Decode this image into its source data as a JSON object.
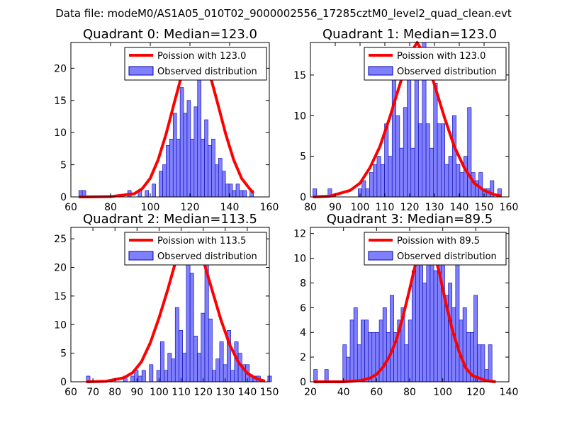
{
  "suptitle": "Data file: modeM0/AS1A05_010T02_9000002556_17285cztM0_level2_quad_clean.evt",
  "colors": {
    "line": "#ff0000",
    "bar_fill": "#8080ff",
    "bar_edge": "#0000aa",
    "axis": "#000000",
    "legend_edge": "#000000"
  },
  "chart_data": [
    {
      "type": "bar",
      "title": "Quadrant 0: Median=123.0",
      "median": 123.0,
      "xlim": [
        60,
        160
      ],
      "ylim": [
        0,
        24
      ],
      "xticks": [
        60,
        80,
        100,
        120,
        140,
        160
      ],
      "yticks": [
        0,
        5,
        10,
        15,
        20
      ],
      "legend": {
        "location": "upper-right",
        "line_label": "Poission with 123.0",
        "bar_label": "Observed distribution"
      },
      "bins": {
        "start": 64,
        "width": 1.76
      },
      "counts": [
        1,
        1,
        0,
        0,
        0,
        0,
        0,
        0,
        0,
        0,
        0,
        0,
        0,
        0,
        1,
        0,
        0,
        1,
        0,
        1,
        0,
        2,
        0,
        4,
        5,
        8,
        9,
        13,
        9,
        17,
        13,
        15,
        9,
        14,
        22,
        9,
        12,
        8,
        9,
        5,
        6,
        4,
        2,
        2,
        1,
        2,
        1,
        1,
        0,
        1
      ],
      "poisson_fit": {
        "x": [
          64,
          80,
          92,
          96,
          100,
          104,
          108,
          112,
          116,
          120,
          123,
          126,
          130,
          134,
          138,
          142,
          146,
          150,
          152
        ],
        "y": [
          0,
          0.05,
          0.5,
          1.3,
          2.9,
          5.8,
          9.8,
          14.5,
          19.1,
          22.3,
          23,
          22.3,
          19.1,
          14.5,
          9.8,
          5.8,
          2.9,
          1.3,
          0.6
        ]
      }
    },
    {
      "type": "bar",
      "title": "Quadrant 1: Median=123.0",
      "median": 123.0,
      "xlim": [
        80,
        160
      ],
      "ylim": [
        0,
        19
      ],
      "xticks": [
        80,
        90,
        100,
        110,
        120,
        130,
        140,
        150,
        160
      ],
      "yticks": [
        0,
        5,
        10,
        15
      ],
      "legend": {
        "location": "upper-right",
        "line_label": "Poission with 123.0",
        "bar_label": "Observed distribution"
      },
      "bins": {
        "start": 81,
        "width": 1.52
      },
      "counts": [
        1,
        0,
        0,
        0,
        1,
        0,
        0,
        0,
        0,
        0,
        0,
        0,
        1,
        2,
        1,
        3,
        4,
        5,
        4,
        9,
        5,
        15,
        10,
        6,
        11,
        16,
        6,
        15,
        9,
        19,
        9,
        6,
        14,
        9,
        9,
        4,
        5,
        10,
        4,
        3,
        5,
        11,
        3,
        2,
        3,
        1,
        1,
        2,
        0,
        1
      ],
      "poisson_fit": {
        "x": [
          81,
          88,
          96,
          100,
          104,
          108,
          112,
          116,
          120,
          123,
          126,
          130,
          134,
          138,
          142,
          146,
          150,
          154,
          157
        ],
        "y": [
          0,
          0.1,
          0.8,
          1.7,
          3.6,
          6.2,
          9.8,
          13.8,
          17.5,
          19,
          17.5,
          13.8,
          9.8,
          6.2,
          3.6,
          1.7,
          0.8,
          0.3,
          0.1
        ]
      }
    },
    {
      "type": "bar",
      "title": "Quadrant 2: Median=113.5",
      "median": 113.5,
      "xlim": [
        60,
        150
      ],
      "ylim": [
        0,
        27
      ],
      "xticks": [
        60,
        70,
        80,
        90,
        100,
        110,
        120,
        130,
        140,
        150
      ],
      "yticks": [
        0,
        5,
        10,
        15,
        20,
        25
      ],
      "legend": {
        "location": "upper-right",
        "line_label": "Poission with 113.5",
        "bar_label": "Observed distribution"
      },
      "bins": {
        "start": 67,
        "width": 1.68
      },
      "counts": [
        1,
        0,
        0,
        0,
        0,
        0,
        0,
        0,
        0,
        0,
        1,
        0,
        1,
        2,
        1,
        2,
        0,
        3,
        0,
        2,
        7,
        2,
        5,
        4,
        13,
        9,
        5,
        26,
        19,
        8,
        5,
        12,
        21,
        11,
        2,
        4,
        7,
        3,
        9,
        2,
        7,
        5,
        3,
        3,
        1,
        1,
        1,
        0,
        0,
        1
      ],
      "poisson_fit": {
        "x": [
          67,
          76,
          84,
          88,
          92,
          96,
          100,
          104,
          108,
          111,
          113.5,
          116,
          120,
          124,
          128,
          132,
          136,
          140,
          144,
          148
        ],
        "y": [
          0,
          0.1,
          0.7,
          1.6,
          3.5,
          6.8,
          11.2,
          16.2,
          21.7,
          25,
          26,
          25,
          21.3,
          16.1,
          10.9,
          6.5,
          3.4,
          1.5,
          0.6,
          0.1
        ]
      }
    },
    {
      "type": "bar",
      "title": "Quadrant 3: Median=89.5",
      "median": 89.5,
      "xlim": [
        20,
        140
      ],
      "ylim": [
        0,
        12.5
      ],
      "xticks": [
        20,
        40,
        60,
        80,
        100,
        120,
        140
      ],
      "yticks": [
        0,
        2,
        4,
        6,
        8,
        10,
        12
      ],
      "legend": {
        "location": "upper-right",
        "line_label": "Poission with 89.5",
        "bar_label": "Observed distribution"
      },
      "bins": {
        "start": 22,
        "width": 2.2
      },
      "counts": [
        1,
        0,
        0,
        1,
        0,
        0,
        0,
        0,
        3,
        2,
        5,
        6,
        3,
        5,
        5,
        4,
        4,
        4,
        5,
        6,
        4,
        7,
        4,
        5,
        6,
        3,
        5,
        9,
        11,
        10,
        8,
        10,
        10,
        9,
        11,
        12,
        7,
        8,
        6,
        10,
        5,
        6,
        4,
        4,
        7,
        3,
        3,
        1,
        3,
        0
      ],
      "poisson_fit": {
        "x": [
          22,
          40,
          50,
          56,
          60,
          64,
          68,
          72,
          76,
          80,
          84,
          89.5,
          94,
          98,
          102,
          106,
          110,
          114,
          118,
          126,
          132
        ],
        "y": [
          0,
          0,
          0.1,
          0.3,
          0.6,
          1.2,
          2.1,
          3.4,
          5.3,
          7.5,
          9.8,
          12,
          10.9,
          8.8,
          6.3,
          4.1,
          2.4,
          1.1,
          0.5,
          0.1,
          0
        ]
      }
    }
  ]
}
